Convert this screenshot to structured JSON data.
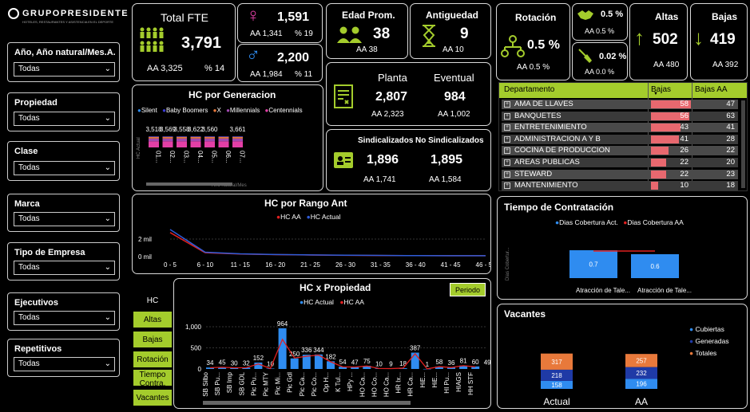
{
  "logo": {
    "name": "GRUPOPRESIDENTE",
    "tagline": "HOTELES, RESTAURANTES Y ASISTENCIA EN EL DEPORTE"
  },
  "filters": [
    {
      "label": "Año, Año natural/Mes.A...",
      "value": "Todas"
    },
    {
      "label": "Propiedad",
      "value": "Todas"
    },
    {
      "label": "Clase",
      "value": "Todas"
    },
    {
      "label": "Marca",
      "value": "Todas"
    },
    {
      "label": "Tipo de Empresa",
      "value": "Todas"
    },
    {
      "label": "Ejecutivos",
      "value": "Todas"
    },
    {
      "label": "Repetitivos",
      "value": "Todas"
    }
  ],
  "kpi": {
    "fte": {
      "title": "Total FTE",
      "value": "3,791",
      "aa": "AA 3,325",
      "pct": "% 14"
    },
    "female": {
      "value": "1,591",
      "aa": "AA 1,341",
      "pct": "% 19"
    },
    "male": {
      "value": "2,200",
      "aa": "AA 1,984",
      "pct": "% 11"
    },
    "edad": {
      "title": "Edad Prom.",
      "value": "38",
      "aa": "AA 38"
    },
    "antig": {
      "title": "Antiguedad",
      "value": "9",
      "aa": "AA 10"
    },
    "rotacion": {
      "title": "Rotación",
      "value": "0.5 %",
      "aa": "AA 0.5 %"
    },
    "rot_vol": {
      "value": "0.5 %",
      "aa": "AA 0.5 %"
    },
    "rot_inv": {
      "value": "0.02 %",
      "aa": "AA 0.0 %"
    },
    "altas": {
      "title": "Altas",
      "value": "502",
      "aa": "AA 480"
    },
    "bajas": {
      "title": "Bajas",
      "value": "419",
      "aa": "AA 392"
    },
    "planta": {
      "title": "Planta",
      "value": "2,807",
      "aa": "AA 2,323"
    },
    "eventual": {
      "title": "Eventual",
      "value": "984",
      "aa": "AA 1,002"
    },
    "sind": {
      "title": "Sindicalizados",
      "value": "1,896",
      "aa": "AA 1,741"
    },
    "nosind": {
      "title": "No Sindicalizados",
      "value": "1,895",
      "aa": "AA 1,584"
    }
  },
  "dept_table": {
    "headers": [
      "Departamento",
      "Bajas",
      "Bajas AA"
    ],
    "rows": [
      {
        "name": "AMA DE LLAVES",
        "bajas": 58,
        "aa": 47
      },
      {
        "name": "BANQUETES",
        "bajas": 56,
        "aa": 63
      },
      {
        "name": "ENTRETENIMIENTO",
        "bajas": 43,
        "aa": 41
      },
      {
        "name": "ADMINISTRACION A Y B",
        "bajas": 41,
        "aa": 28
      },
      {
        "name": "COCINA DE PRODUCCION",
        "bajas": 26,
        "aa": 22
      },
      {
        "name": "AREAS PUBLICAS",
        "bajas": 22,
        "aa": 20
      },
      {
        "name": "STEWARD",
        "bajas": 22,
        "aa": 23
      },
      {
        "name": "MANTENIMIENTO",
        "bajas": 10,
        "aa": 18
      }
    ]
  },
  "nav": {
    "buttons": [
      "HC",
      "Altas",
      "Bajas",
      "Rotación",
      "Tiempo Contra.",
      "Vacantes"
    ],
    "periodo": "Periodo"
  },
  "chart_data": [
    {
      "id": "generacion",
      "type": "bar",
      "title": "HC por Generacion",
      "legend": [
        "Silent",
        "Baby Boomers",
        "X",
        "Millennials",
        "Centennials"
      ],
      "legend_colors": [
        "#2f8cf0",
        "#3b3bd6",
        "#e8793b",
        "#a14ab0",
        "#e33fa6"
      ],
      "categories": [
        "01...",
        "02...",
        "03...",
        "04...",
        "05...",
        "06...",
        "07..."
      ],
      "values": [
        3518,
        3569,
        3558,
        3622,
        3560,
        3560,
        3661
      ],
      "labels": [
        "3,518",
        "3,569",
        "3,558",
        "3,622",
        "3,560",
        "",
        "3,661"
      ],
      "ylabel": "HC Actual",
      "xlabel": "Año natural/Mes"
    },
    {
      "id": "rango_ant",
      "type": "line",
      "title": "HC por Rango Ant",
      "legend": [
        "HC AA",
        "HC Actual"
      ],
      "categories": [
        "0 - 5",
        "6 - 10",
        "11 - 15",
        "16 - 20",
        "21 - 25",
        "26 - 30",
        "31 - 35",
        "36 - 40",
        "41 - 45",
        "46 - 50"
      ],
      "series": [
        {
          "name": "HC AA",
          "values": [
            2300,
            300,
            180,
            120,
            80,
            50,
            30,
            20,
            10,
            5
          ]
        },
        {
          "name": "HC Actual",
          "values": [
            2600,
            350,
            200,
            130,
            90,
            60,
            35,
            20,
            10,
            5
          ]
        }
      ],
      "yticks": [
        "2 mil",
        "0 mil"
      ]
    },
    {
      "id": "propiedad",
      "type": "bar",
      "title": "HC x Propiedad",
      "legend": [
        "HC Actual",
        "HC AA"
      ],
      "yticks": [
        "1,000",
        "500",
        "0"
      ],
      "ylim": [
        0,
        1000
      ],
      "categories": [
        "SB Silbo",
        "SB Pu...",
        "SB Imp",
        "SB GDL",
        "Pic Pu...",
        "Pic MTY",
        "Pic Mi...",
        "Pic Gdl",
        "Pic Ca...",
        "Pic Co...",
        "Op H...",
        "K Tul...",
        "HPy ...",
        "HO Ca...",
        "HO Co...",
        "HO Ca...",
        "HR Ix...",
        "HR Ca...",
        "HiE...",
        "HiE...",
        "HI Pu...",
        "HIAGS",
        "HH STF"
      ],
      "values": [
        34,
        45,
        30,
        32,
        152,
        10,
        964,
        250,
        336,
        344,
        182,
        54,
        47,
        75,
        10,
        9,
        18,
        387,
        1,
        58,
        36,
        81,
        60
      ],
      "labels": [
        "34",
        "45",
        "30",
        "32",
        "152",
        "10",
        "964",
        "250",
        "336",
        "344",
        "182",
        "54",
        "47",
        "75",
        "10",
        "9",
        "18",
        "387",
        "1",
        "58",
        "36",
        "81",
        "60"
      ],
      "aa_values": [
        30,
        40,
        28,
        30,
        120,
        12,
        700,
        260,
        300,
        330,
        170,
        50,
        45,
        70,
        12,
        9,
        20,
        360,
        2,
        55,
        34,
        78,
        49
      ],
      "extra_label": "49"
    },
    {
      "id": "tiempo",
      "type": "bar",
      "title": "Tiempo de Contratación",
      "legend": [
        "Dias Cobertura Act.",
        "Dias Cobertura AA"
      ],
      "categories": [
        "Atracción de Tale...",
        "Atracción de Tale..."
      ],
      "values": [
        0.7,
        0.6
      ],
      "labels": [
        "0.7",
        "0.6"
      ],
      "aa_values": [
        0.8,
        0.8
      ],
      "ylabel": "Dias Cobertur..."
    },
    {
      "id": "vacantes",
      "type": "bar",
      "title": "Vacantes",
      "legend": [
        "Cubiertas",
        "Generadas",
        "Totales"
      ],
      "categories": [
        "Actual",
        "AA"
      ],
      "series": [
        {
          "name": "Cubiertas",
          "values": [
            158,
            196
          ]
        },
        {
          "name": "Generadas",
          "values": [
            218,
            232
          ]
        },
        {
          "name": "Totales",
          "values": [
            317,
            257
          ]
        }
      ]
    }
  ],
  "colors": {
    "accent": "#a4cc2c",
    "bar_blue": "#2f8cf0",
    "line_red": "#e02020",
    "bajas_bar": "#e8686f",
    "generadas": "#1f3aa6",
    "totales": "#e8793b"
  }
}
